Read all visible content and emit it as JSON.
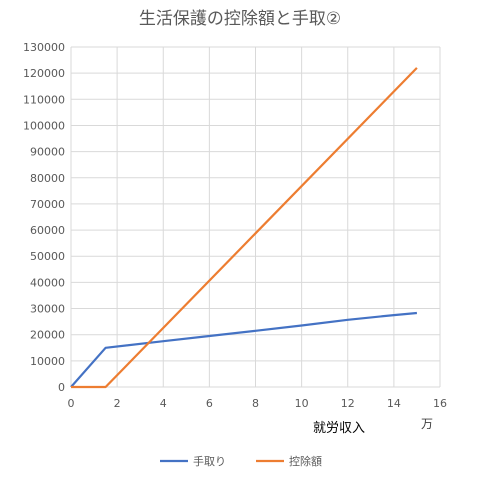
{
  "chart_data": {
    "type": "line",
    "title": "生活保護の控除額と手取②",
    "xlabel": "就労収入",
    "x_unit": "万",
    "ylabel": "",
    "xlim": [
      0,
      16
    ],
    "ylim": [
      0,
      130000
    ],
    "x_ticks": [
      "0",
      "2",
      "4",
      "6",
      "8",
      "10",
      "12",
      "14",
      "16"
    ],
    "y_ticks": [
      "0",
      "10000",
      "20000",
      "30000",
      "40000",
      "50000",
      "60000",
      "70000",
      "80000",
      "90000",
      "100000",
      "110000",
      "120000",
      "130000"
    ],
    "grid": true,
    "legend_position": "bottom",
    "series": [
      {
        "name": "手取り",
        "color": "#4472C4",
        "points": [
          [
            0,
            0
          ],
          [
            1.5,
            15000
          ],
          [
            4,
            17500
          ],
          [
            6,
            19500
          ],
          [
            8,
            21500
          ],
          [
            10,
            23500
          ],
          [
            12,
            25700
          ],
          [
            14,
            27500
          ],
          [
            15,
            28300
          ]
        ]
      },
      {
        "name": "控除額",
        "color": "#ED7D31",
        "points": [
          [
            0,
            0
          ],
          [
            1.5,
            0
          ],
          [
            15,
            122000
          ]
        ]
      }
    ]
  }
}
